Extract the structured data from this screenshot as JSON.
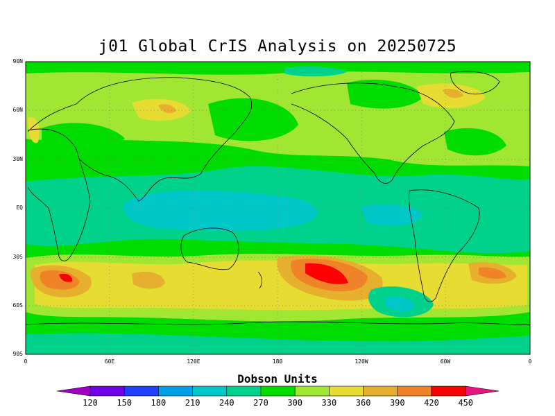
{
  "title": "j01 Global CrIS Analysis on 20250725",
  "lat_labels": [
    "90N",
    "60N",
    "30N",
    "EQ",
    "30S",
    "60S",
    "90S"
  ],
  "lon_labels": [
    "0",
    "60E",
    "120E",
    "180",
    "120W",
    "60W",
    "0"
  ],
  "colorbar": {
    "title": "Dobson Units",
    "ticks": [
      "120",
      "150",
      "180",
      "210",
      "240",
      "270",
      "300",
      "330",
      "360",
      "390",
      "420",
      "450"
    ],
    "colors": [
      "#a000c8",
      "#7000e8",
      "#2040ff",
      "#00a0e6",
      "#00c8c8",
      "#00d28c",
      "#00dc00",
      "#a0e632",
      "#e6dc32",
      "#e6af2d",
      "#f08228",
      "#fa0000",
      "#e6147d"
    ]
  },
  "map": {
    "lat_range": [
      -90,
      90
    ],
    "lon_range": [
      0,
      360
    ],
    "grid": true,
    "contour_levels_du": [
      120,
      150,
      180,
      210,
      240,
      270,
      300,
      330,
      360,
      390,
      420,
      450
    ]
  }
}
